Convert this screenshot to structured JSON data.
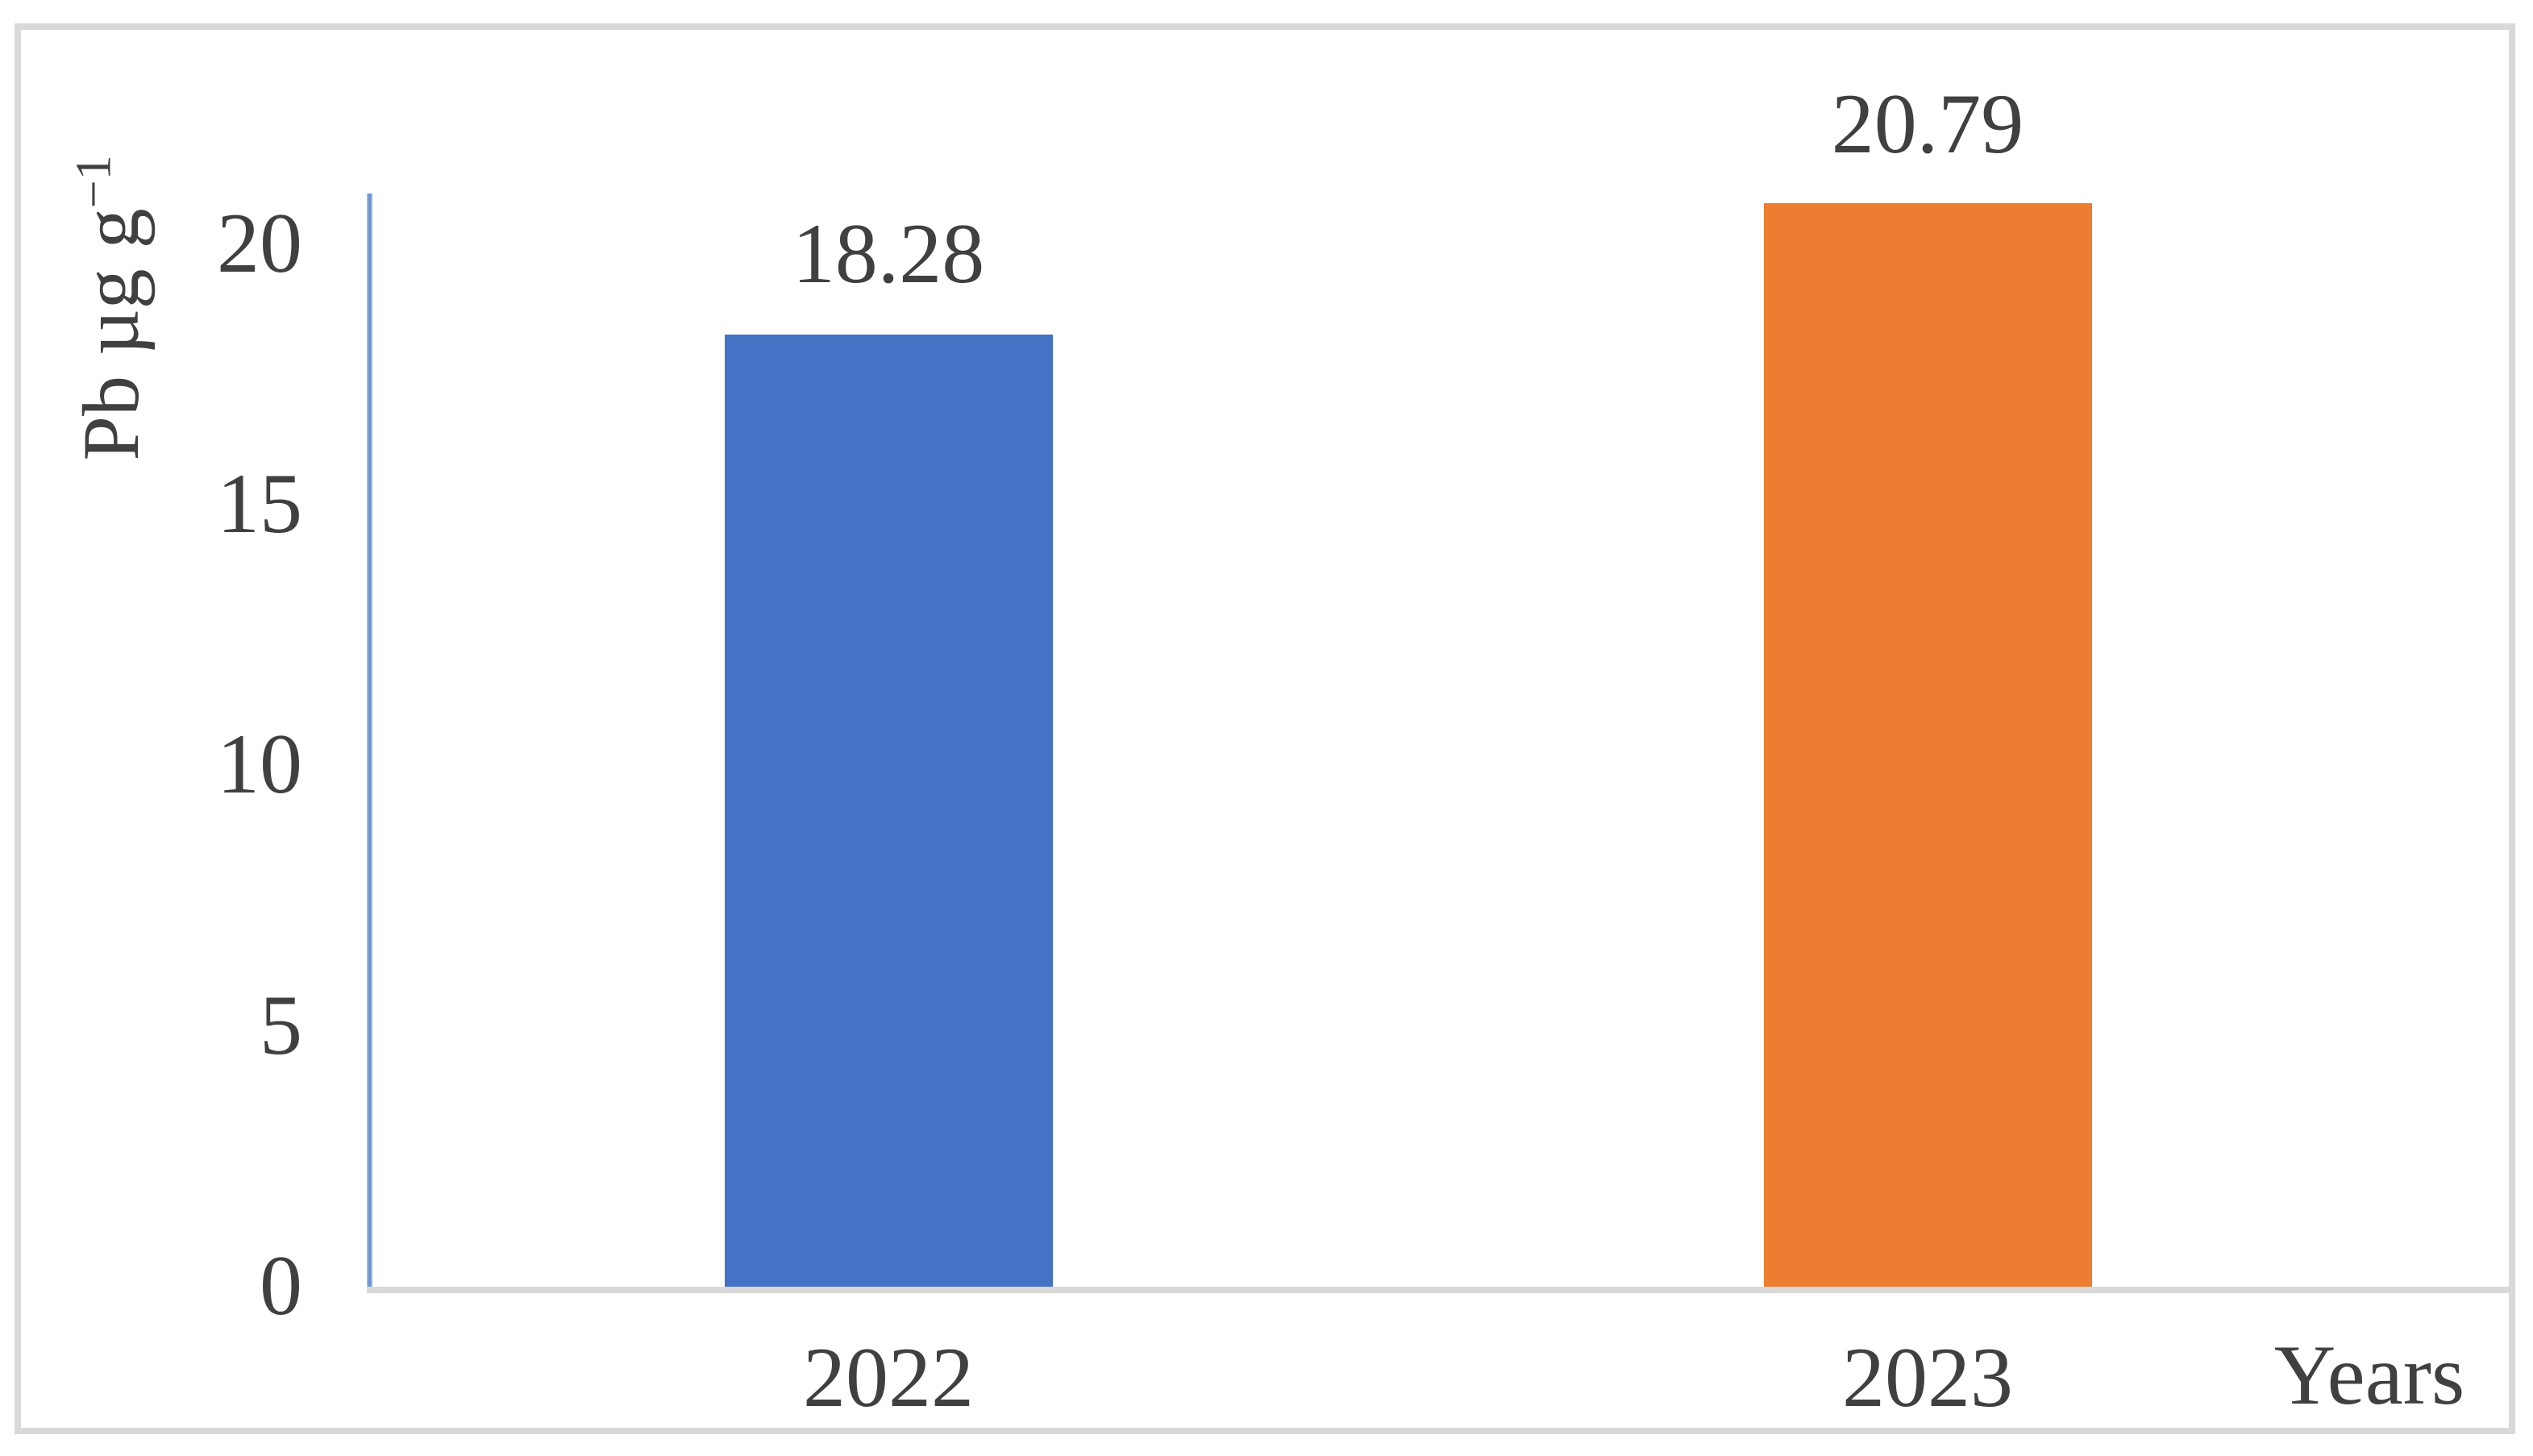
{
  "chart_data": {
    "type": "bar",
    "categories": [
      "2022",
      "2023"
    ],
    "values": [
      18.28,
      20.79
    ],
    "value_labels": [
      "18.28",
      "20.79"
    ],
    "bar_colors": [
      "#4472C4",
      "#ED7D31"
    ],
    "xlabel": "Years",
    "ylabel": "Pb µg g⁻¹",
    "ylabel_base": "Pb µg g",
    "ylabel_sup": "−1",
    "yticks": [
      "20",
      "15",
      "10",
      "5",
      "0"
    ],
    "ylim": [
      0,
      21
    ],
    "grid": false,
    "legend": "none",
    "text_color": "#404040",
    "y_axis_color": "#8FAADC",
    "x_axis_color": "#D9D9D9",
    "frame_color": "#D9D9D9"
  }
}
